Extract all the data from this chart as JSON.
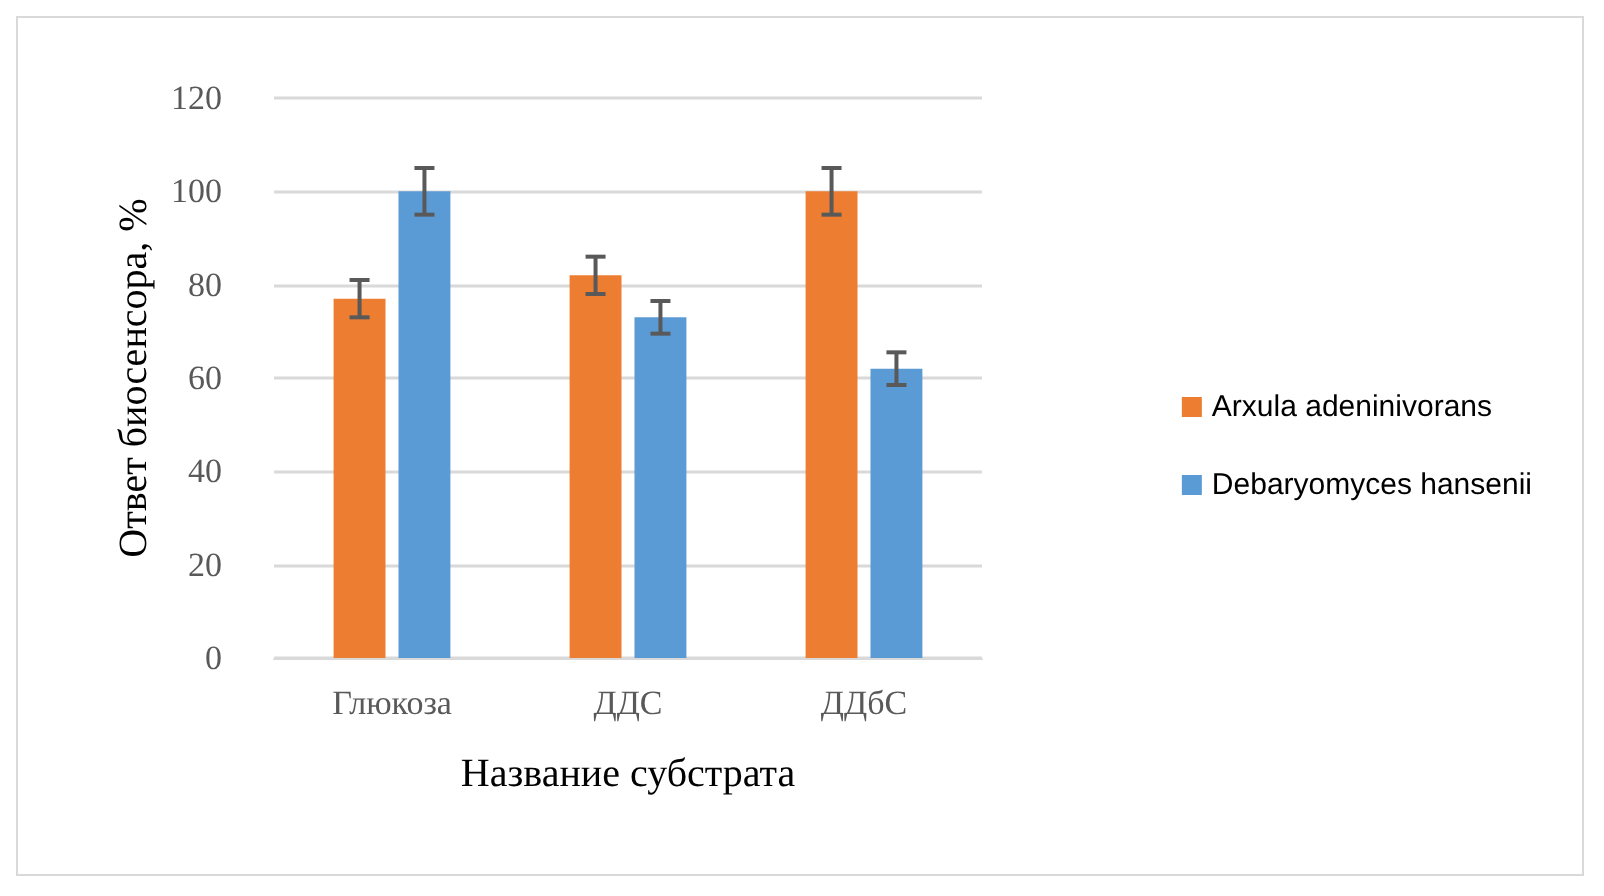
{
  "chart_data": {
    "type": "bar",
    "xlabel": "Название субстрата",
    "ylabel": "Ответ биосенсора, %",
    "categories": [
      "Глюкоза",
      "ДДС",
      "ДДбС"
    ],
    "series": [
      {
        "name": "Arxula adeninivorans",
        "color": "#ed7d31",
        "values": [
          77,
          82,
          100
        ],
        "errors": [
          4,
          4,
          5
        ]
      },
      {
        "name": "Debaryomyces hansenii",
        "color": "#5b9bd5",
        "values": [
          100,
          73,
          62
        ],
        "errors": [
          5,
          3.5,
          3.5
        ]
      }
    ],
    "ylim": [
      0,
      120
    ],
    "yticks": [
      0,
      20,
      40,
      60,
      80,
      100,
      120
    ],
    "grid": "y",
    "legend": "right"
  }
}
